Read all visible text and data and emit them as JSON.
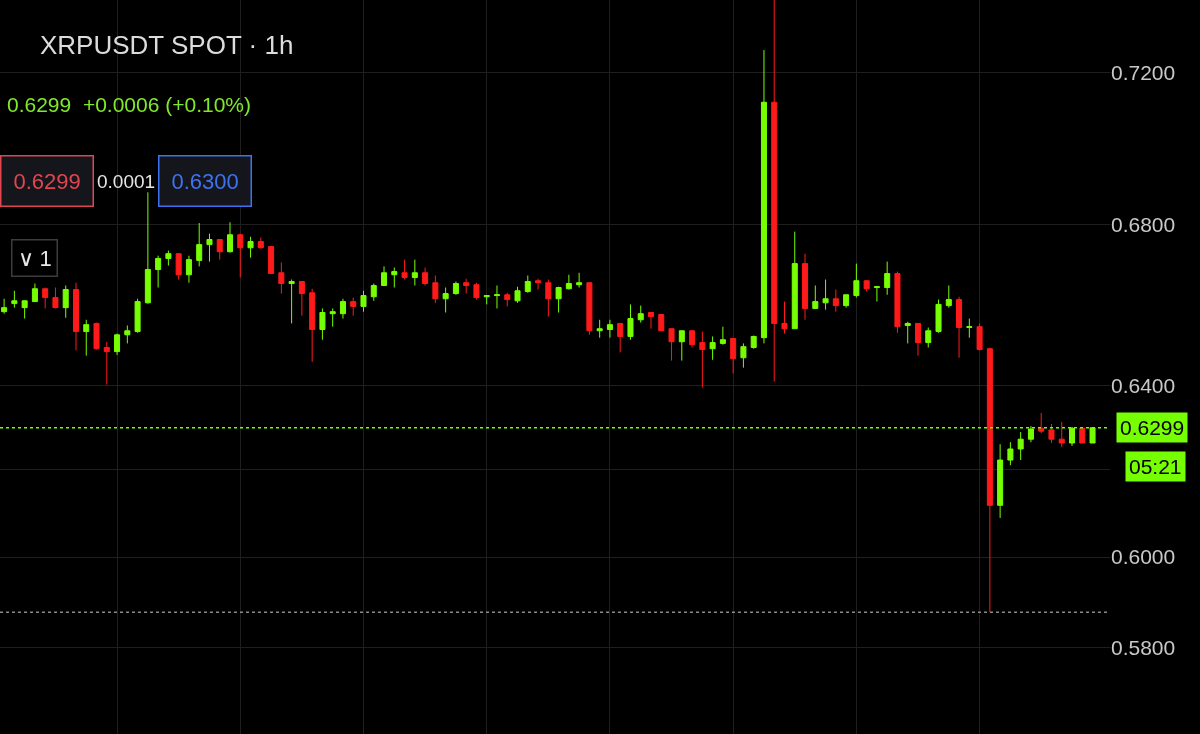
{
  "chart_data": {
    "type": "candlestick",
    "title": "XRPUSDT SPOT · 1h",
    "subtitle": "0.6299  +0.0006 (+0.10%)",
    "annotations": [
      "0.6299",
      "0.0001",
      "0.6300",
      "∨ 1",
      "05:21"
    ],
    "categories": [
      null,
      null,
      null,
      null,
      null,
      null,
      null,
      null,
      null,
      null,
      null,
      null,
      null,
      null,
      null,
      null,
      null,
      null,
      null,
      null,
      null,
      null,
      null,
      null,
      null,
      null,
      null,
      null,
      null,
      null,
      null,
      null,
      null,
      null,
      null,
      null,
      null,
      null,
      null,
      null,
      null,
      null,
      null,
      null,
      null,
      null,
      null,
      null,
      null,
      null,
      null,
      null,
      null,
      null,
      null,
      null,
      null,
      null,
      null,
      null,
      null,
      null,
      null,
      null,
      null,
      null,
      null,
      null,
      null,
      null,
      null,
      null,
      null,
      null,
      null,
      null,
      null,
      null,
      null,
      null,
      null,
      null,
      null,
      null,
      null,
      null,
      null,
      null,
      null,
      null,
      null,
      null,
      null,
      null,
      null,
      null,
      null,
      null,
      null,
      null,
      null,
      null,
      null,
      null,
      null,
      null,
      null
    ],
    "ohlc": [
      [
        0.658,
        0.6612,
        0.6575,
        0.659
      ],
      [
        0.66,
        0.6632,
        0.659,
        0.6607
      ],
      [
        0.659,
        0.6607,
        0.6563,
        0.6607
      ],
      [
        0.6605,
        0.665,
        0.6605,
        0.6637
      ],
      [
        0.6637,
        0.664,
        0.6588,
        0.6615
      ],
      [
        0.6615,
        0.664,
        0.6588,
        0.659
      ],
      [
        0.659,
        0.6645,
        0.6565,
        0.6635
      ],
      [
        0.6635,
        0.6652,
        0.6485,
        0.6531
      ],
      [
        0.6531,
        0.656,
        0.6472,
        0.6548
      ],
      [
        0.6551,
        0.6553,
        0.6487,
        0.6489
      ],
      [
        0.6492,
        0.6506,
        0.6402,
        0.6482
      ],
      [
        0.6482,
        0.6526,
        0.6474,
        0.6523
      ],
      [
        0.6523,
        0.6546,
        0.6502,
        0.6533
      ],
      [
        0.6531,
        0.6612,
        0.6528,
        0.6605
      ],
      [
        0.6602,
        0.6882,
        0.66,
        0.6685
      ],
      [
        0.6685,
        0.672,
        0.664,
        0.6713
      ],
      [
        0.6713,
        0.6733,
        0.6695,
        0.6725
      ],
      [
        0.6725,
        0.6725,
        0.666,
        0.6672
      ],
      [
        0.6672,
        0.672,
        0.6652,
        0.671
      ],
      [
        0.6708,
        0.6803,
        0.6693,
        0.6748
      ],
      [
        0.6748,
        0.6776,
        0.6705,
        0.6761
      ],
      [
        0.6761,
        0.6761,
        0.671,
        0.673
      ],
      [
        0.673,
        0.6805,
        0.6728,
        0.6773
      ],
      [
        0.6773,
        0.6776,
        0.6665,
        0.674
      ],
      [
        0.674,
        0.6768,
        0.6715,
        0.6756
      ],
      [
        0.6756,
        0.6766,
        0.6738,
        0.674
      ],
      [
        0.6743,
        0.6745,
        0.6675,
        0.6675
      ],
      [
        0.6677,
        0.6703,
        0.6625,
        0.665
      ],
      [
        0.665,
        0.666,
        0.6551,
        0.6655
      ],
      [
        0.6655,
        0.6655,
        0.657,
        0.6625
      ],
      [
        0.6627,
        0.6637,
        0.6457,
        0.6536
      ],
      [
        0.6536,
        0.6588,
        0.6511,
        0.6578
      ],
      [
        0.6575,
        0.6588,
        0.6543,
        0.658
      ],
      [
        0.6575,
        0.6612,
        0.6563,
        0.6605
      ],
      [
        0.6605,
        0.6615,
        0.657,
        0.6593
      ],
      [
        0.6593,
        0.6632,
        0.658,
        0.662
      ],
      [
        0.6617,
        0.665,
        0.6607,
        0.6645
      ],
      [
        0.6645,
        0.6693,
        0.6645,
        0.6677
      ],
      [
        0.6672,
        0.669,
        0.664,
        0.668
      ],
      [
        0.6677,
        0.671,
        0.666,
        0.6665
      ],
      [
        0.6665,
        0.671,
        0.6645,
        0.6677
      ],
      [
        0.6677,
        0.669,
        0.6645,
        0.665
      ],
      [
        0.6652,
        0.667,
        0.6602,
        0.6612
      ],
      [
        0.6612,
        0.664,
        0.6578,
        0.6625
      ],
      [
        0.6625,
        0.6655,
        0.6622,
        0.665
      ],
      [
        0.6652,
        0.6662,
        0.6625,
        0.6645
      ],
      [
        0.6647,
        0.6652,
        0.661,
        0.6615
      ],
      [
        0.6617,
        0.662,
        0.6598,
        0.662
      ],
      [
        0.662,
        0.6645,
        0.6588,
        0.6622
      ],
      [
        0.6622,
        0.6627,
        0.6593,
        0.661
      ],
      [
        0.6607,
        0.6642,
        0.6602,
        0.6632
      ],
      [
        0.663,
        0.667,
        0.6627,
        0.6655
      ],
      [
        0.6657,
        0.6662,
        0.6635,
        0.6652
      ],
      [
        0.6652,
        0.666,
        0.6568,
        0.6612
      ],
      [
        0.6612,
        0.6642,
        0.6578,
        0.664
      ],
      [
        0.6637,
        0.6672,
        0.6635,
        0.665
      ],
      [
        0.6647,
        0.6677,
        0.664,
        0.6652
      ],
      [
        0.6652,
        0.6652,
        0.6523,
        0.6533
      ],
      [
        0.6533,
        0.656,
        0.6516,
        0.6538
      ],
      [
        0.6536,
        0.656,
        0.6516,
        0.6548
      ],
      [
        0.6551,
        0.6551,
        0.648,
        0.6519
      ],
      [
        0.6519,
        0.6598,
        0.6511,
        0.6563
      ],
      [
        0.656,
        0.6595,
        0.6553,
        0.6575
      ],
      [
        0.6578,
        0.6578,
        0.6538,
        0.6568
      ],
      [
        0.6573,
        0.6573,
        0.6533,
        0.6533
      ],
      [
        0.6538,
        0.6538,
        0.646,
        0.6506
      ],
      [
        0.6506,
        0.6533,
        0.646,
        0.6533
      ],
      [
        0.6533,
        0.6533,
        0.6492,
        0.6499
      ],
      [
        0.6504,
        0.6531,
        0.6395,
        0.6487
      ],
      [
        0.6489,
        0.6519,
        0.6462,
        0.6504
      ],
      [
        0.6502,
        0.6543,
        0.6499,
        0.6511
      ],
      [
        0.6514,
        0.6514,
        0.6429,
        0.6465
      ],
      [
        0.6467,
        0.6502,
        0.6443,
        0.6494
      ],
      [
        0.6492,
        0.6521,
        0.6489,
        0.6519
      ],
      [
        0.6516,
        0.726,
        0.6502,
        0.7119
      ],
      [
        0.7119,
        0.7398,
        0.6409,
        0.6551
      ],
      [
        0.6551,
        0.6605,
        0.6526,
        0.6538
      ],
      [
        0.6538,
        0.6781,
        0.6538,
        0.67
      ],
      [
        0.67,
        0.6725,
        0.656,
        0.6588
      ],
      [
        0.6588,
        0.6645,
        0.6588,
        0.6605
      ],
      [
        0.6602,
        0.666,
        0.6585,
        0.6612
      ],
      [
        0.6612,
        0.6635,
        0.658,
        0.6595
      ],
      [
        0.6595,
        0.6622,
        0.659,
        0.6622
      ],
      [
        0.662,
        0.67,
        0.6615,
        0.6657
      ],
      [
        0.6657,
        0.6657,
        0.663,
        0.6637
      ],
      [
        0.664,
        0.6642,
        0.6605,
        0.6642
      ],
      [
        0.664,
        0.6705,
        0.6622,
        0.6675
      ],
      [
        0.6675,
        0.668,
        0.6528,
        0.6543
      ],
      [
        0.6546,
        0.6555,
        0.6502,
        0.6551
      ],
      [
        0.6551,
        0.6551,
        0.6472,
        0.6504
      ],
      [
        0.6504,
        0.6541,
        0.6492,
        0.6533
      ],
      [
        0.6531,
        0.661,
        0.6528,
        0.6598
      ],
      [
        0.6595,
        0.6645,
        0.659,
        0.661
      ],
      [
        0.661,
        0.6617,
        0.6467,
        0.6541
      ],
      [
        0.6541,
        0.6563,
        0.6516,
        0.6543
      ],
      [
        0.6543,
        0.6551,
        0.6485,
        0.6487
      ],
      [
        0.6489,
        0.6492,
        0.5877,
        0.6118
      ],
      [
        0.6118,
        0.626,
        0.6089,
        0.6223
      ],
      [
        0.6223,
        0.6265,
        0.6211,
        0.6249
      ],
      [
        0.6249,
        0.6289,
        0.6223,
        0.6272
      ],
      [
        0.6272,
        0.6303,
        0.6265,
        0.6296
      ],
      [
        0.6298,
        0.6334,
        0.6286,
        0.6291
      ],
      [
        0.6294,
        0.6308,
        0.6263,
        0.6272
      ],
      [
        0.6272,
        0.6313,
        0.6253,
        0.6263
      ],
      [
        0.6263,
        0.6301,
        0.6256,
        0.6298
      ],
      [
        0.6298,
        0.6298,
        0.6263,
        0.6263
      ],
      [
        0.6263,
        0.6299,
        0.6263,
        0.6299
      ]
    ],
    "colors": [
      "#76ff03",
      "#76ff03",
      "#76ff03",
      "#76ff03",
      "#ff1a1a",
      "#ff1a1a",
      "#76ff03",
      "#ff1a1a",
      "#76ff03",
      "#ff1a1a",
      "#ff1a1a",
      "#76ff03",
      "#76ff03",
      "#76ff03",
      "#76ff03",
      "#76ff03",
      "#76ff03",
      "#ff1a1a",
      "#76ff03",
      "#76ff03",
      "#76ff03",
      "#ff1a1a",
      "#76ff03",
      "#ff1a1a",
      "#76ff03",
      "#ff1a1a",
      "#ff1a1a",
      "#ff1a1a",
      "#76ff03",
      "#ff1a1a",
      "#ff1a1a",
      "#76ff03",
      "#76ff03",
      "#76ff03",
      "#ff1a1a",
      "#76ff03",
      "#76ff03",
      "#76ff03",
      "#76ff03",
      "#ff1a1a",
      "#76ff03",
      "#ff1a1a",
      "#ff1a1a",
      "#76ff03",
      "#76ff03",
      "#ff1a1a",
      "#ff1a1a",
      "#76ff03",
      "#76ff03",
      "#ff1a1a",
      "#76ff03",
      "#76ff03",
      "#ff1a1a",
      "#ff1a1a",
      "#76ff03",
      "#76ff03",
      "#76ff03",
      "#ff1a1a",
      "#76ff03",
      "#76ff03",
      "#ff1a1a",
      "#76ff03",
      "#76ff03",
      "#ff1a1a",
      "#ff1a1a",
      "#ff1a1a",
      "#76ff03",
      "#ff1a1a",
      "#ff1a1a",
      "#76ff03",
      "#76ff03",
      "#ff1a1a",
      "#76ff03",
      "#76ff03",
      "#76ff03",
      "#ff1a1a",
      "#ff1a1a",
      "#76ff03",
      "#ff1a1a",
      "#76ff03",
      "#76ff03",
      "#ff1a1a",
      "#76ff03",
      "#76ff03",
      "#ff1a1a",
      "#76ff03",
      "#76ff03",
      "#ff1a1a",
      "#76ff03",
      "#ff1a1a",
      "#76ff03",
      "#76ff03",
      "#76ff03",
      "#ff1a1a",
      "#76ff03",
      "#ff1a1a",
      "#ff1a1a",
      "#76ff03",
      "#76ff03",
      "#76ff03",
      "#76ff03",
      "#ff1a1a",
      "#ff1a1a",
      "#ff1a1a",
      "#76ff03",
      "#ff1a1a",
      "#76ff03"
    ],
    "log": true,
    "ylim": [
      0.5614,
      0.7398
    ],
    "yticks": [
      {
        "value": 0.58,
        "label": "0.5800"
      },
      {
        "value": 0.6,
        "label": "0.6000"
      },
      {
        "value": 0.62,
        "label": null
      },
      {
        "value": 0.64,
        "label": "0.6400"
      },
      {
        "value": 0.68,
        "label": "0.6800"
      },
      {
        "value": 0.72,
        "label": "0.7200"
      }
    ],
    "ref_lines": [
      {
        "axis": "y",
        "value": 0.6299,
        "label": "0.6299",
        "color": "#76ff03",
        "line_style": "dotted"
      },
      {
        "axis": "y",
        "value": 0.5877,
        "label": null,
        "color": "#8a8a8a",
        "line_style": "dotted"
      }
    ],
    "grid": true,
    "legend": false,
    "tick_labels": "y"
  }
}
